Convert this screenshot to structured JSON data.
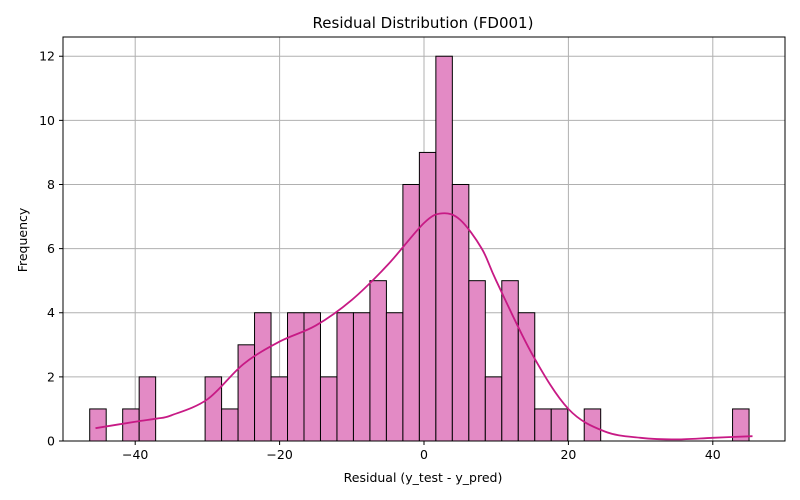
{
  "chart_data": {
    "type": "bar",
    "subtype": "histogram-with-kde",
    "title": "Residual Distribution (FD001)",
    "xlabel": "Residual (y_test - y_pred)",
    "ylabel": "Frequency",
    "xlim": [
      -50,
      50
    ],
    "ylim": [
      0,
      12.6
    ],
    "xticks": [
      -40,
      -20,
      0,
      20,
      40
    ],
    "yticks": [
      0,
      2,
      4,
      6,
      8,
      10,
      12
    ],
    "grid": true,
    "colors": {
      "bar_fill": "#E38AC5",
      "bar_edge": "#000000",
      "kde_line": "#C71A85",
      "grid": "#b0b0b0"
    },
    "bins": {
      "start": -46.3,
      "width": 2.283,
      "counts": [
        1,
        0,
        1,
        2,
        0,
        0,
        0,
        2,
        1,
        3,
        4,
        2,
        4,
        4,
        2,
        4,
        4,
        5,
        4,
        8,
        9,
        12,
        8,
        5,
        2,
        5,
        4,
        1,
        1,
        0,
        1,
        0,
        0,
        0,
        0,
        0,
        0,
        0,
        0,
        1
      ]
    },
    "kde": {
      "x": [
        -45.5,
        -40,
        -37,
        -35,
        -30,
        -25,
        -20,
        -15,
        -10,
        -5,
        0,
        2.5,
        5,
        8,
        10,
        15,
        20,
        25,
        30,
        35,
        40,
        45.5
      ],
      "y": [
        0.4,
        0.6,
        0.7,
        0.8,
        1.3,
        2.4,
        3.1,
        3.6,
        4.4,
        5.5,
        6.8,
        7.1,
        6.9,
        6.0,
        5.0,
        2.7,
        1.0,
        0.3,
        0.1,
        0.05,
        0.1,
        0.15
      ]
    }
  }
}
